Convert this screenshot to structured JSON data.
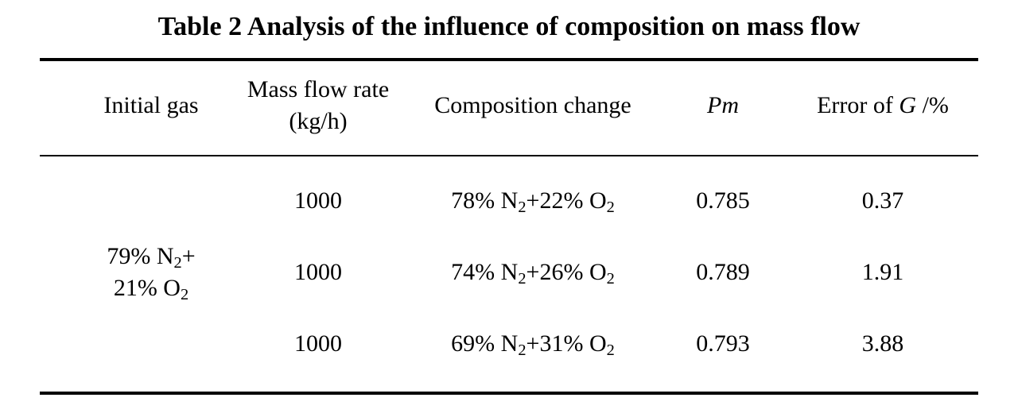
{
  "title": "Table 2 Analysis of the influence of composition on mass flow",
  "headers": {
    "initial_gas": "Initial gas",
    "mass_flow_line1": "Mass flow rate",
    "mass_flow_line2": "(kg/h)",
    "composition_change": "Composition change",
    "pm": "Pm",
    "error_prefix": "Error of ",
    "error_var": "G",
    "error_suffix": " /%"
  },
  "initial_gas": {
    "line1_pct": "79% N",
    "line1_sub": "2",
    "line1_plus": "+",
    "line2_pct": "21% O",
    "line2_sub": "2"
  },
  "rows": [
    {
      "mass_flow": "1000",
      "comp_n_pct": "78% N",
      "comp_n_sub": "2",
      "comp_o_pct": "+22% O",
      "comp_o_sub": "2",
      "pm": "0.785",
      "error": "0.37"
    },
    {
      "mass_flow": "1000",
      "comp_n_pct": "74% N",
      "comp_n_sub": "2",
      "comp_o_pct": "+26% O",
      "comp_o_sub": "2",
      "pm": "0.789",
      "error": "1.91"
    },
    {
      "mass_flow": "1000",
      "comp_n_pct": "69% N",
      "comp_n_sub": "2",
      "comp_o_pct": "+31% O",
      "comp_o_sub": "2",
      "pm": "0.793",
      "error": "3.88"
    }
  ]
}
